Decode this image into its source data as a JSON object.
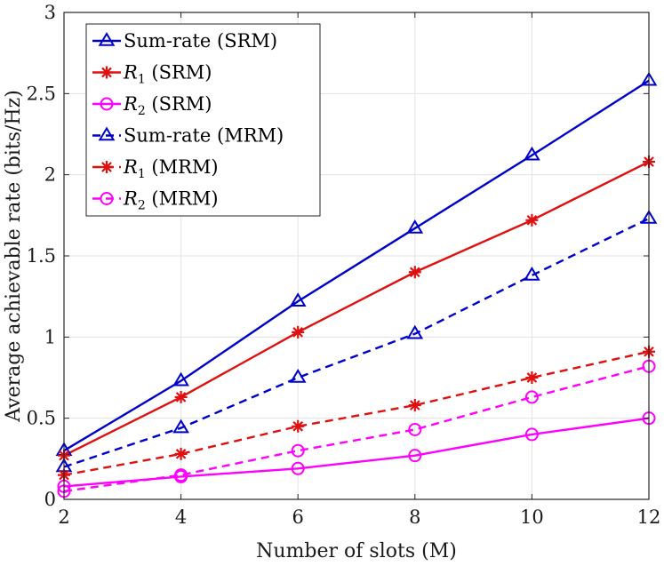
{
  "chart_data": {
    "type": "line",
    "title": "",
    "xlabel": "Number of slots (M)",
    "ylabel": "Average achievable rate (bits/Hz)",
    "xlim": [
      2,
      12
    ],
    "ylim": [
      0,
      3
    ],
    "xticks": [
      2,
      4,
      6,
      8,
      10,
      12
    ],
    "yticks": [
      0,
      0.5,
      1,
      1.5,
      2,
      2.5,
      3
    ],
    "ytick_labels": [
      "0",
      "0.5",
      "1",
      "1.5",
      "2",
      "2.5",
      "3"
    ],
    "grid": true,
    "legend_position": "top-left",
    "x": [
      2,
      4,
      6,
      8,
      10,
      12
    ],
    "series": [
      {
        "name": "Sum-rate (SRM)",
        "label_main": "Sum-rate",
        "label_sub": "",
        "label_tail": " (SRM)",
        "color": "#0000cc",
        "dash": "solid",
        "marker": "triangle",
        "values": [
          0.3,
          0.73,
          1.22,
          1.67,
          2.12,
          2.58
        ]
      },
      {
        "name": "R1 (SRM)",
        "label_main": "R",
        "label_sub": "1",
        "label_tail": " (SRM)",
        "color": "#e01010",
        "dash": "solid",
        "marker": "asterisk",
        "values": [
          0.27,
          0.63,
          1.03,
          1.4,
          1.72,
          2.08
        ]
      },
      {
        "name": "R2 (SRM)",
        "label_main": "R",
        "label_sub": "2",
        "label_tail": " (SRM)",
        "color": "#ff00ff",
        "dash": "solid",
        "marker": "circle",
        "values": [
          0.08,
          0.14,
          0.19,
          0.27,
          0.4,
          0.5
        ]
      },
      {
        "name": "Sum-rate (MRM)",
        "label_main": "Sum-rate",
        "label_sub": "",
        "label_tail": " (MRM)",
        "color": "#0000cc",
        "dash": "dashed",
        "marker": "triangle",
        "values": [
          0.2,
          0.44,
          0.75,
          1.02,
          1.38,
          1.73
        ]
      },
      {
        "name": "R1 (MRM)",
        "label_main": "R",
        "label_sub": "1",
        "label_tail": " (MRM)",
        "color": "#e01010",
        "dash": "dashed",
        "marker": "asterisk",
        "values": [
          0.15,
          0.28,
          0.45,
          0.58,
          0.75,
          0.91
        ]
      },
      {
        "name": "R2 (MRM)",
        "label_main": "R",
        "label_sub": "2",
        "label_tail": " (MRM)",
        "color": "#ff00ff",
        "dash": "dashed",
        "marker": "circle",
        "values": [
          0.05,
          0.15,
          0.3,
          0.43,
          0.63,
          0.82
        ]
      }
    ]
  }
}
